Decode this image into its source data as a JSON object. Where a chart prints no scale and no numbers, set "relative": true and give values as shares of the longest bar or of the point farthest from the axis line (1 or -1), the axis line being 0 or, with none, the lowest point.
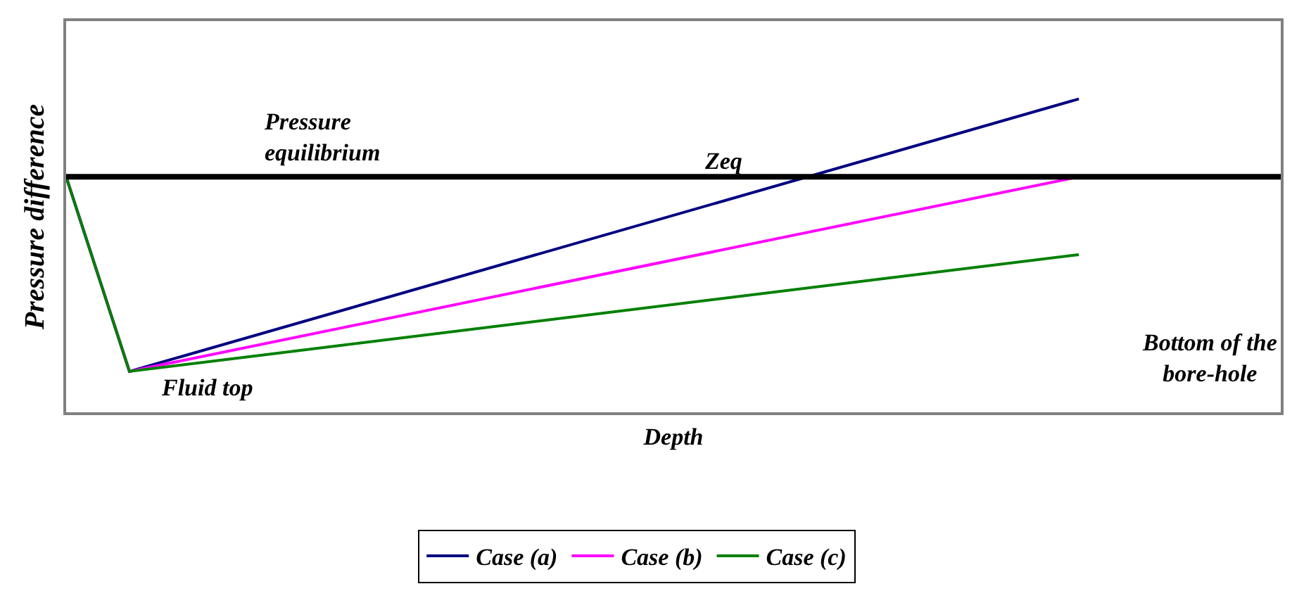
{
  "chart_data": {
    "type": "line",
    "relative": true,
    "xlabel": "Depth",
    "ylabel": "Pressure difference",
    "categories": [
      null,
      null,
      null,
      null,
      null,
      null,
      null,
      null,
      null,
      null,
      null,
      null,
      null,
      null,
      null,
      null,
      null,
      null,
      null,
      null
    ],
    "tick_labels": false,
    "legend": "bottom",
    "line_style": "solid",
    "marker": "none",
    "series": [
      {
        "name": "Case (a)",
        "color": "#000080",
        "values": [
          0,
          -1,
          null,
          null,
          null,
          null,
          null,
          null,
          null,
          null,
          null,
          null,
          null,
          null,
          null,
          null,
          0.4,
          null,
          null,
          null
        ]
      },
      {
        "name": "Case (b)",
        "color": "#ff00ff",
        "values": [
          0,
          -1,
          null,
          null,
          null,
          null,
          null,
          null,
          null,
          null,
          null,
          null,
          null,
          null,
          null,
          null,
          0,
          null,
          null,
          null
        ]
      },
      {
        "name": "Case (c)",
        "color": "#008000",
        "values": [
          0,
          -1,
          null,
          null,
          null,
          null,
          null,
          null,
          null,
          null,
          null,
          null,
          null,
          null,
          null,
          null,
          -0.4,
          null,
          null,
          null
        ]
      }
    ],
    "ref_lines": [
      {
        "axis": "y",
        "value": 0,
        "label": "Pressure equilibrium",
        "color": "#000000"
      }
    ],
    "annotations": [
      "Zeq",
      "Fluid top",
      "Bottom of the bore-hole"
    ]
  }
}
